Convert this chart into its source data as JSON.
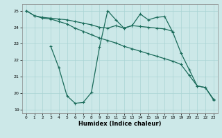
{
  "xlabel": "Humidex (Indice chaleur)",
  "bg_color": "#cce8e8",
  "line_color": "#1a6b5a",
  "grid_color": "#aad4d4",
  "xlim": [
    -0.5,
    23.5
  ],
  "ylim": [
    18.8,
    25.4
  ],
  "yticks": [
    19,
    20,
    21,
    22,
    23,
    24,
    25
  ],
  "xticks": [
    0,
    1,
    2,
    3,
    4,
    5,
    6,
    7,
    8,
    9,
    10,
    11,
    12,
    13,
    14,
    15,
    16,
    17,
    18,
    19,
    20,
    21,
    22,
    23
  ],
  "series1_x": [
    0,
    1,
    2,
    3,
    4,
    5,
    6,
    7,
    8,
    9,
    10,
    11,
    12,
    13,
    14,
    15,
    16,
    17,
    18
  ],
  "series1_y": [
    25.0,
    24.7,
    24.6,
    24.55,
    24.5,
    24.45,
    24.35,
    24.25,
    24.15,
    24.0,
    23.95,
    24.1,
    23.95,
    24.1,
    24.05,
    24.0,
    23.95,
    23.9,
    23.75
  ],
  "series2_x": [
    0,
    1,
    2,
    3,
    4,
    5,
    6,
    7,
    8,
    9,
    10,
    11,
    12,
    13,
    14,
    15,
    16,
    17,
    18,
    19,
    20,
    21,
    22,
    23
  ],
  "series2_y": [
    25.0,
    24.7,
    24.55,
    24.5,
    24.35,
    24.2,
    23.95,
    23.75,
    23.55,
    23.35,
    23.2,
    23.05,
    22.85,
    22.7,
    22.55,
    22.4,
    22.25,
    22.1,
    21.95,
    21.75,
    21.1,
    20.45,
    20.35,
    19.65
  ],
  "series3_x": [
    3,
    4,
    5,
    6,
    7,
    8,
    9,
    10,
    11,
    12,
    13,
    14,
    15,
    16,
    17,
    18,
    19,
    20,
    21,
    22,
    23
  ],
  "series3_y": [
    22.85,
    21.55,
    19.85,
    19.4,
    19.45,
    20.05,
    22.8,
    25.0,
    24.45,
    23.95,
    24.1,
    24.8,
    24.45,
    24.6,
    24.65,
    23.7,
    22.45,
    21.45,
    20.45,
    20.35,
    19.6
  ]
}
